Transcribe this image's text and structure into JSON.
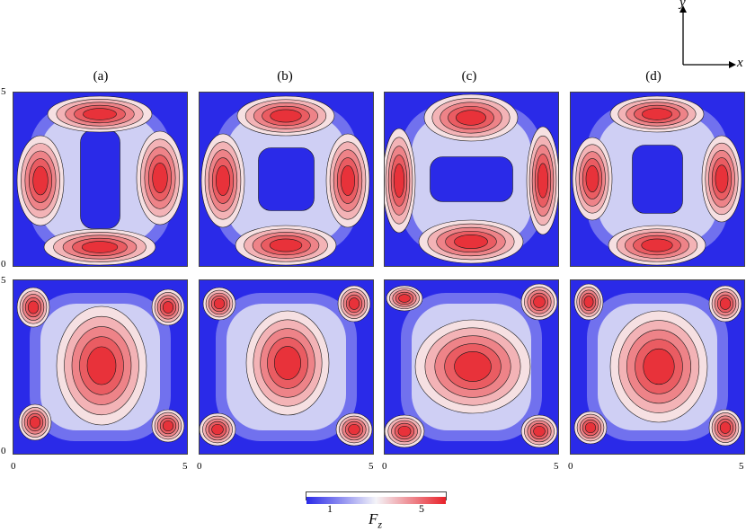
{
  "panel_labels": [
    "(a)",
    "(b)",
    "(c)",
    "(d)"
  ],
  "ticks": {
    "zero": "0",
    "five": "5"
  },
  "axes": {
    "x": "x",
    "y": "y"
  },
  "colorbar": {
    "low_tick": "1",
    "high_tick": "5",
    "quantity": "F",
    "quantity_sub": "z",
    "low_color": "#2a2ae8",
    "mid_color": "#f4f4f8",
    "high_color": "#e8222a"
  },
  "chart_data": {
    "type": "heatmap",
    "rows": 2,
    "columns": 4,
    "x_range": [
      0,
      5
    ],
    "y_range": [
      0,
      5
    ],
    "color_range": [
      1,
      5
    ],
    "contours": true
  }
}
